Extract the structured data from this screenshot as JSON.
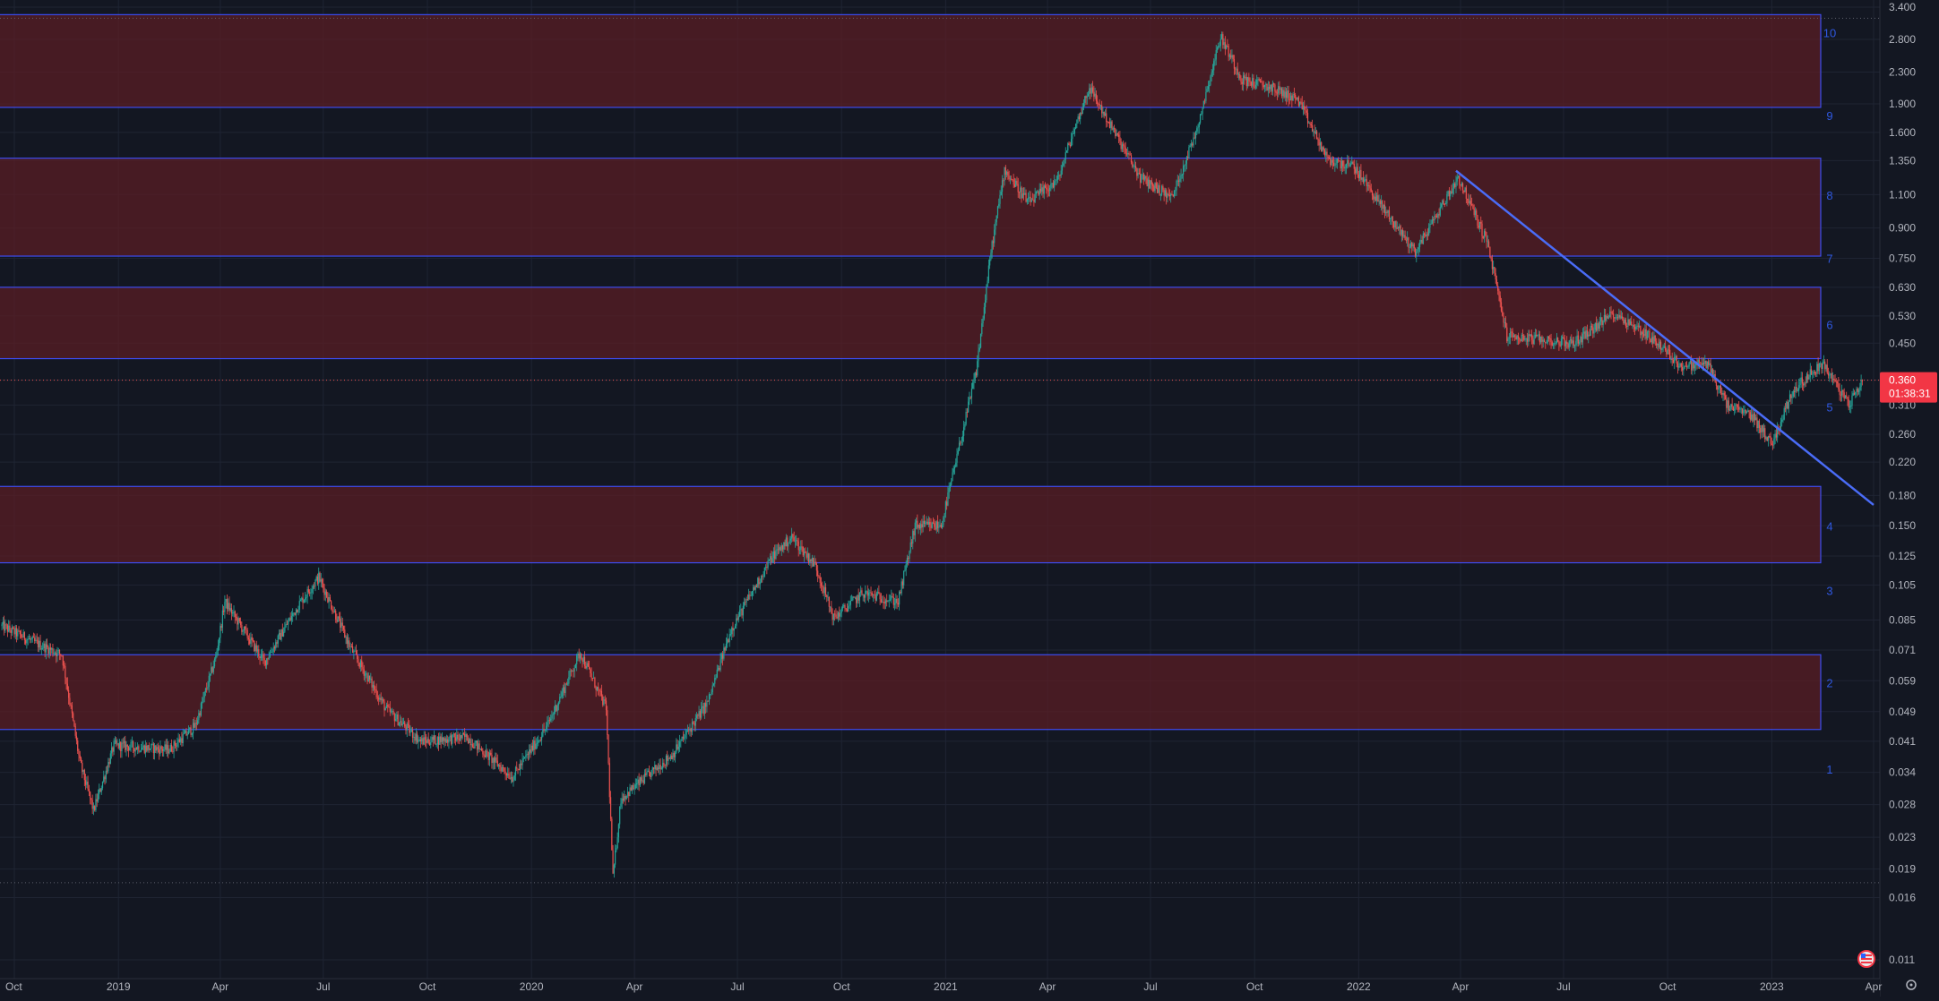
{
  "chart_data": {
    "type": "candlestick",
    "title": "",
    "scale": "log",
    "grid": true,
    "colors": {
      "background": "#131722",
      "grid": "#1f2433",
      "axis_text": "#b2b5be",
      "candle_up": "#26a69a",
      "candle_down": "#ef5350",
      "zone_fill": "#5c1d24",
      "zone_border": "#3d4cf0",
      "trendline": "#4a6cf7",
      "zone_number": "#2f58e0",
      "price_label_bg": "#f23645"
    },
    "y_ticks": [
      "3.400",
      "2.800",
      "2.300",
      "1.900",
      "1.600",
      "1.350",
      "1.100",
      "0.900",
      "0.750",
      "0.630",
      "0.530",
      "0.450",
      "0.360",
      "0.310",
      "0.260",
      "0.220",
      "0.180",
      "0.150",
      "0.125",
      "0.105",
      "0.085",
      "0.071",
      "0.059",
      "0.049",
      "0.041",
      "0.034",
      "0.028",
      "0.023",
      "0.019",
      "0.016",
      "0.011"
    ],
    "x_ticks": [
      {
        "label": "Oct",
        "date": "2018-10-01"
      },
      {
        "label": "2019",
        "date": "2019-01-01"
      },
      {
        "label": "Apr",
        "date": "2019-04-01"
      },
      {
        "label": "Jul",
        "date": "2019-07-01"
      },
      {
        "label": "Oct",
        "date": "2019-10-01"
      },
      {
        "label": "2020",
        "date": "2020-01-01"
      },
      {
        "label": "Apr",
        "date": "2020-04-01"
      },
      {
        "label": "Jul",
        "date": "2020-07-01"
      },
      {
        "label": "Oct",
        "date": "2020-10-01"
      },
      {
        "label": "2021",
        "date": "2021-01-01"
      },
      {
        "label": "Apr",
        "date": "2021-04-01"
      },
      {
        "label": "Jul",
        "date": "2021-07-01"
      },
      {
        "label": "Oct",
        "date": "2021-10-01"
      },
      {
        "label": "2022",
        "date": "2022-01-01"
      },
      {
        "label": "Apr",
        "date": "2022-04-01"
      },
      {
        "label": "Jul",
        "date": "2022-07-01"
      },
      {
        "label": "Oct",
        "date": "2022-10-01"
      },
      {
        "label": "2023",
        "date": "2023-01-01"
      },
      {
        "label": "Apr",
        "date": "2023-04-01"
      }
    ],
    "zones": [
      {
        "low": 0.044,
        "high": 0.069
      },
      {
        "low": 0.12,
        "high": 0.19
      },
      {
        "low": 0.41,
        "high": 0.63
      },
      {
        "low": 0.76,
        "high": 1.37
      },
      {
        "low": 1.86,
        "high": 3.25
      }
    ],
    "zone_labels": [
      {
        "text": "1",
        "price": 0.0345
      },
      {
        "text": "2",
        "price": 0.058
      },
      {
        "text": "3",
        "price": 0.101
      },
      {
        "text": "4",
        "price": 0.149
      },
      {
        "text": "5",
        "price": 0.305
      },
      {
        "text": "6",
        "price": 0.5
      },
      {
        "text": "7",
        "price": 0.745
      },
      {
        "text": "8",
        "price": 1.09
      },
      {
        "text": "9",
        "price": 1.76
      },
      {
        "text": "10",
        "price": 2.9
      }
    ],
    "trendline": {
      "start": {
        "date": "2022-03-28",
        "price": 1.27
      },
      "end": {
        "date": "2023-04-01",
        "price": 0.17
      }
    },
    "current_price": {
      "value": "0.360",
      "countdown": "01:38:31"
    },
    "dotted_levels": [
      3.18,
      0.0175
    ],
    "anchors": [
      {
        "date": "2018-09-20",
        "price": 0.082
      },
      {
        "date": "2018-10-20",
        "price": 0.074
      },
      {
        "date": "2018-11-12",
        "price": 0.069
      },
      {
        "date": "2018-11-28",
        "price": 0.036
      },
      {
        "date": "2018-12-10",
        "price": 0.027
      },
      {
        "date": "2018-12-28",
        "price": 0.04
      },
      {
        "date": "2019-02-15",
        "price": 0.039
      },
      {
        "date": "2019-03-10",
        "price": 0.045
      },
      {
        "date": "2019-03-28",
        "price": 0.068
      },
      {
        "date": "2019-04-05",
        "price": 0.095
      },
      {
        "date": "2019-05-10",
        "price": 0.066
      },
      {
        "date": "2019-06-10",
        "price": 0.094
      },
      {
        "date": "2019-06-27",
        "price": 0.11
      },
      {
        "date": "2019-07-25",
        "price": 0.072
      },
      {
        "date": "2019-08-25",
        "price": 0.05
      },
      {
        "date": "2019-09-25",
        "price": 0.041
      },
      {
        "date": "2019-11-05",
        "price": 0.042
      },
      {
        "date": "2019-12-15",
        "price": 0.033
      },
      {
        "date": "2020-01-15",
        "price": 0.045
      },
      {
        "date": "2020-02-13",
        "price": 0.07
      },
      {
        "date": "2020-03-07",
        "price": 0.05
      },
      {
        "date": "2020-03-13",
        "price": 0.018
      },
      {
        "date": "2020-03-20",
        "price": 0.029
      },
      {
        "date": "2020-05-05",
        "price": 0.038
      },
      {
        "date": "2020-06-05",
        "price": 0.052
      },
      {
        "date": "2020-06-25",
        "price": 0.08
      },
      {
        "date": "2020-08-01",
        "price": 0.125
      },
      {
        "date": "2020-08-18",
        "price": 0.14
      },
      {
        "date": "2020-09-08",
        "price": 0.118
      },
      {
        "date": "2020-09-24",
        "price": 0.086
      },
      {
        "date": "2020-10-20",
        "price": 0.1
      },
      {
        "date": "2020-11-20",
        "price": 0.095
      },
      {
        "date": "2020-12-05",
        "price": 0.15
      },
      {
        "date": "2020-12-28",
        "price": 0.15
      },
      {
        "date": "2021-01-10",
        "price": 0.22
      },
      {
        "date": "2021-01-28",
        "price": 0.38
      },
      {
        "date": "2021-02-10",
        "price": 0.78
      },
      {
        "date": "2021-02-22",
        "price": 1.28
      },
      {
        "date": "2021-03-15",
        "price": 1.05
      },
      {
        "date": "2021-04-10",
        "price": 1.2
      },
      {
        "date": "2021-04-22",
        "price": 1.55
      },
      {
        "date": "2021-05-08",
        "price": 2.1
      },
      {
        "date": "2021-05-25",
        "price": 1.7
      },
      {
        "date": "2021-06-22",
        "price": 1.22
      },
      {
        "date": "2021-07-20",
        "price": 1.08
      },
      {
        "date": "2021-08-10",
        "price": 1.6
      },
      {
        "date": "2021-09-01",
        "price": 2.85
      },
      {
        "date": "2021-09-20",
        "price": 2.2
      },
      {
        "date": "2021-10-15",
        "price": 2.1
      },
      {
        "date": "2021-11-08",
        "price": 1.95
      },
      {
        "date": "2021-12-05",
        "price": 1.35
      },
      {
        "date": "2021-12-28",
        "price": 1.3
      },
      {
        "date": "2022-01-22",
        "price": 1.02
      },
      {
        "date": "2022-02-20",
        "price": 0.78
      },
      {
        "date": "2022-03-30",
        "price": 1.22
      },
      {
        "date": "2022-04-25",
        "price": 0.82
      },
      {
        "date": "2022-05-12",
        "price": 0.47
      },
      {
        "date": "2022-06-10",
        "price": 0.46
      },
      {
        "date": "2022-07-10",
        "price": 0.45
      },
      {
        "date": "2022-08-14",
        "price": 0.54
      },
      {
        "date": "2022-09-15",
        "price": 0.47
      },
      {
        "date": "2022-10-14",
        "price": 0.39
      },
      {
        "date": "2022-11-05",
        "price": 0.4
      },
      {
        "date": "2022-11-22",
        "price": 0.31
      },
      {
        "date": "2022-12-15",
        "price": 0.29
      },
      {
        "date": "2023-01-01",
        "price": 0.245
      },
      {
        "date": "2023-01-20",
        "price": 0.34
      },
      {
        "date": "2023-02-15",
        "price": 0.4
      },
      {
        "date": "2023-03-10",
        "price": 0.31
      },
      {
        "date": "2023-03-22",
        "price": 0.36
      }
    ]
  }
}
